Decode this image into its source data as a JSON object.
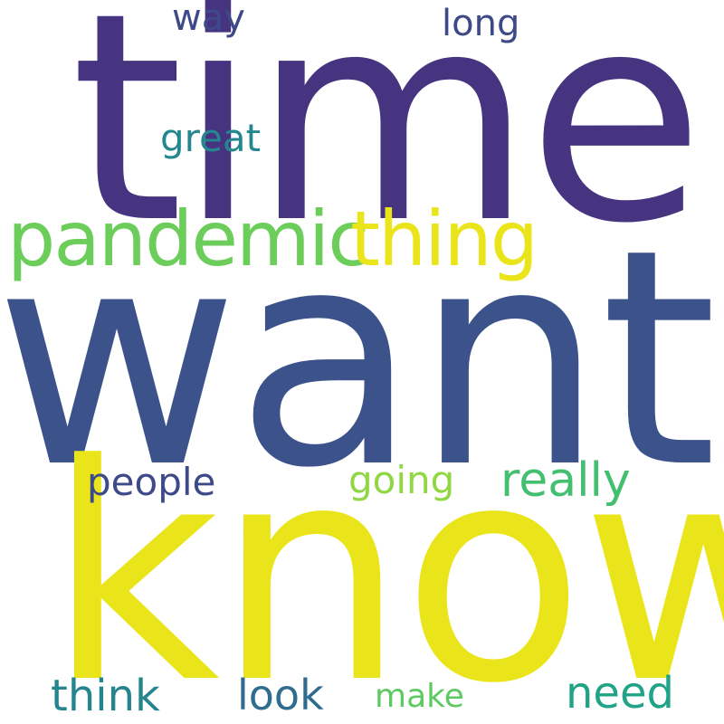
{
  "words": {
    "time": {
      "text": "time",
      "color": "#463480"
    },
    "want": {
      "text": "want",
      "color": "#3B528B"
    },
    "know": {
      "text": "know",
      "color": "#EAE51A"
    },
    "pandemic": {
      "text": "pandemic",
      "color": "#6CCD5A"
    },
    "thing": {
      "text": "thing",
      "color": "#EAE51A"
    },
    "way": {
      "text": "way",
      "color": "#3E4989"
    },
    "long": {
      "text": "long",
      "color": "#3E4989"
    },
    "great": {
      "text": "great",
      "color": "#24868E"
    },
    "people": {
      "text": "people",
      "color": "#3E4989"
    },
    "going": {
      "text": "going",
      "color": "#90D743"
    },
    "really": {
      "text": "really",
      "color": "#44BF70"
    },
    "think": {
      "text": "think",
      "color": "#25858E"
    },
    "look": {
      "text": "look",
      "color": "#2F6C8E"
    },
    "make": {
      "text": "make",
      "color": "#5DC963"
    },
    "need": {
      "text": "need",
      "color": "#20A386"
    }
  }
}
